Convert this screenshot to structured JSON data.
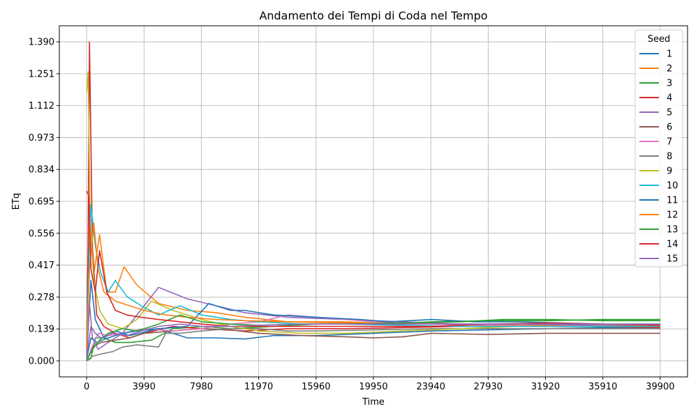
{
  "chart_data": {
    "type": "line",
    "title": "Andamento dei Tempi di Coda nel Tempo",
    "xlabel": "Time",
    "ylabel": "ETq",
    "xlim": [
      -1900,
      41800
    ],
    "ylim": [
      -0.07,
      1.46
    ],
    "xticks": [
      "0",
      "3990",
      "7980",
      "11970",
      "15960",
      "19950",
      "23940",
      "27930",
      "31920",
      "35910",
      "39900"
    ],
    "yticks": [
      "0.000",
      "0.139",
      "0.278",
      "0.417",
      "0.556",
      "0.695",
      "0.834",
      "0.973",
      "1.112",
      "1.251",
      "1.390"
    ],
    "grid": true,
    "legend": {
      "title": "Seed",
      "position": "top-right"
    },
    "series": [
      {
        "name": "1",
        "color": "#1f77b4",
        "points": [
          [
            0,
            0.02
          ],
          [
            300,
            0.35
          ],
          [
            600,
            0.18
          ],
          [
            1200,
            0.1
          ],
          [
            2000,
            0.13
          ],
          [
            3000,
            0.11
          ],
          [
            5000,
            0.14
          ],
          [
            7000,
            0.1
          ],
          [
            9000,
            0.1
          ],
          [
            11000,
            0.095
          ],
          [
            13000,
            0.11
          ],
          [
            16000,
            0.11
          ],
          [
            20000,
            0.12
          ],
          [
            24000,
            0.13
          ],
          [
            28000,
            0.135
          ],
          [
            32000,
            0.14
          ],
          [
            36000,
            0.145
          ],
          [
            39900,
            0.145
          ]
        ]
      },
      {
        "name": "2",
        "color": "#ff7f0e",
        "points": [
          [
            0,
            0.1
          ],
          [
            200,
            0.6
          ],
          [
            500,
            0.38
          ],
          [
            900,
            0.55
          ],
          [
            1400,
            0.3
          ],
          [
            2000,
            0.3
          ],
          [
            2600,
            0.41
          ],
          [
            3500,
            0.33
          ],
          [
            5000,
            0.25
          ],
          [
            7000,
            0.22
          ],
          [
            9000,
            0.21
          ],
          [
            11000,
            0.19
          ],
          [
            14000,
            0.17
          ],
          [
            18000,
            0.17
          ],
          [
            22000,
            0.16
          ],
          [
            26000,
            0.16
          ],
          [
            30000,
            0.155
          ],
          [
            35000,
            0.155
          ],
          [
            39900,
            0.15
          ]
        ]
      },
      {
        "name": "3",
        "color": "#2ca02c",
        "points": [
          [
            0,
            0.0
          ],
          [
            300,
            0.01
          ],
          [
            600,
            0.1
          ],
          [
            1200,
            0.1
          ],
          [
            2000,
            0.08
          ],
          [
            3000,
            0.08
          ],
          [
            4500,
            0.09
          ],
          [
            6000,
            0.14
          ],
          [
            8000,
            0.15
          ],
          [
            10000,
            0.14
          ],
          [
            13000,
            0.15
          ],
          [
            16000,
            0.16
          ],
          [
            20000,
            0.16
          ],
          [
            24000,
            0.17
          ],
          [
            28000,
            0.175
          ],
          [
            32000,
            0.175
          ],
          [
            36000,
            0.18
          ],
          [
            39900,
            0.18
          ]
        ]
      },
      {
        "name": "4",
        "color": "#d62728",
        "points": [
          [
            0,
            0.05
          ],
          [
            100,
            0.5
          ],
          [
            200,
            1.39
          ],
          [
            400,
            0.5
          ],
          [
            700,
            0.2
          ],
          [
            1200,
            0.15
          ],
          [
            2000,
            0.12
          ],
          [
            3000,
            0.1
          ],
          [
            4000,
            0.12
          ],
          [
            6000,
            0.15
          ],
          [
            8000,
            0.14
          ],
          [
            11000,
            0.13
          ],
          [
            14000,
            0.14
          ],
          [
            18000,
            0.14
          ],
          [
            22000,
            0.145
          ],
          [
            26000,
            0.15
          ],
          [
            30000,
            0.15
          ],
          [
            35000,
            0.15
          ],
          [
            39900,
            0.145
          ]
        ]
      },
      {
        "name": "5",
        "color": "#9467bd",
        "points": [
          [
            0,
            0.05
          ],
          [
            200,
            0.25
          ],
          [
            400,
            0.1
          ],
          [
            800,
            0.05
          ],
          [
            1500,
            0.08
          ],
          [
            2500,
            0.12
          ],
          [
            3500,
            0.2
          ],
          [
            5000,
            0.32
          ],
          [
            7000,
            0.27
          ],
          [
            9000,
            0.24
          ],
          [
            11000,
            0.21
          ],
          [
            14000,
            0.19
          ],
          [
            18000,
            0.18
          ],
          [
            22000,
            0.17
          ],
          [
            26000,
            0.16
          ],
          [
            30000,
            0.16
          ],
          [
            35000,
            0.155
          ],
          [
            39900,
            0.15
          ]
        ]
      },
      {
        "name": "6",
        "color": "#8c564b",
        "points": [
          [
            0,
            0.0
          ],
          [
            400,
            0.06
          ],
          [
            1000,
            0.08
          ],
          [
            2000,
            0.09
          ],
          [
            3000,
            0.1
          ],
          [
            4000,
            0.12
          ],
          [
            6000,
            0.13
          ],
          [
            8000,
            0.14
          ],
          [
            10000,
            0.135
          ],
          [
            12000,
            0.12
          ],
          [
            15000,
            0.11
          ],
          [
            18000,
            0.105
          ],
          [
            20000,
            0.1
          ],
          [
            22000,
            0.105
          ],
          [
            24000,
            0.12
          ],
          [
            28000,
            0.115
          ],
          [
            32000,
            0.12
          ],
          [
            36000,
            0.12
          ],
          [
            39900,
            0.12
          ]
        ]
      },
      {
        "name": "7",
        "color": "#e377c2",
        "points": [
          [
            0,
            0.0
          ],
          [
            300,
            0.05
          ],
          [
            800,
            0.12
          ],
          [
            1500,
            0.11
          ],
          [
            2500,
            0.12
          ],
          [
            4000,
            0.14
          ],
          [
            6000,
            0.13
          ],
          [
            8000,
            0.14
          ],
          [
            10000,
            0.16
          ],
          [
            12000,
            0.17
          ],
          [
            14000,
            0.2
          ],
          [
            16000,
            0.19
          ],
          [
            18000,
            0.18
          ],
          [
            20000,
            0.17
          ],
          [
            24000,
            0.16
          ],
          [
            28000,
            0.155
          ],
          [
            32000,
            0.15
          ],
          [
            36000,
            0.15
          ],
          [
            39900,
            0.15
          ]
        ]
      },
      {
        "name": "8",
        "color": "#7f7f7f",
        "points": [
          [
            0,
            0.0
          ],
          [
            400,
            0.02
          ],
          [
            1000,
            0.03
          ],
          [
            1800,
            0.04
          ],
          [
            2500,
            0.06
          ],
          [
            3500,
            0.07
          ],
          [
            5000,
            0.06
          ],
          [
            5500,
            0.12
          ],
          [
            6500,
            0.12
          ],
          [
            8000,
            0.13
          ],
          [
            10000,
            0.14
          ],
          [
            12000,
            0.14
          ],
          [
            14000,
            0.13
          ],
          [
            16000,
            0.13
          ],
          [
            20000,
            0.135
          ],
          [
            24000,
            0.14
          ],
          [
            28000,
            0.14
          ],
          [
            32000,
            0.14
          ],
          [
            36000,
            0.14
          ],
          [
            39900,
            0.14
          ]
        ]
      },
      {
        "name": "9",
        "color": "#bcbd22",
        "points": [
          [
            0,
            1.17
          ],
          [
            100,
            1.26
          ],
          [
            250,
            0.6
          ],
          [
            500,
            0.35
          ],
          [
            900,
            0.22
          ],
          [
            1500,
            0.16
          ],
          [
            2500,
            0.14
          ],
          [
            3500,
            0.18
          ],
          [
            4500,
            0.26
          ],
          [
            6000,
            0.22
          ],
          [
            8000,
            0.18
          ],
          [
            10000,
            0.15
          ],
          [
            12000,
            0.13
          ],
          [
            15000,
            0.12
          ],
          [
            18000,
            0.12
          ],
          [
            22000,
            0.13
          ],
          [
            26000,
            0.14
          ],
          [
            30000,
            0.15
          ],
          [
            35000,
            0.15
          ],
          [
            39900,
            0.15
          ]
        ]
      },
      {
        "name": "10",
        "color": "#17becf",
        "points": [
          [
            0,
            0.1
          ],
          [
            150,
            0.4
          ],
          [
            300,
            0.68
          ],
          [
            600,
            0.5
          ],
          [
            1000,
            0.38
          ],
          [
            1500,
            0.3
          ],
          [
            2000,
            0.35
          ],
          [
            2800,
            0.28
          ],
          [
            3800,
            0.24
          ],
          [
            5000,
            0.2
          ],
          [
            6500,
            0.24
          ],
          [
            8000,
            0.2
          ],
          [
            10000,
            0.18
          ],
          [
            12000,
            0.17
          ],
          [
            15000,
            0.16
          ],
          [
            18000,
            0.16
          ],
          [
            22000,
            0.155
          ],
          [
            26000,
            0.15
          ],
          [
            30000,
            0.15
          ],
          [
            35000,
            0.15
          ],
          [
            39900,
            0.15
          ]
        ]
      },
      {
        "name": "11",
        "color": "#1f77b4",
        "points": [
          [
            0,
            0.01
          ],
          [
            300,
            0.1
          ],
          [
            700,
            0.08
          ],
          [
            1500,
            0.1
          ],
          [
            2500,
            0.12
          ],
          [
            3500,
            0.13
          ],
          [
            5000,
            0.14
          ],
          [
            7000,
            0.15
          ],
          [
            8500,
            0.25
          ],
          [
            10000,
            0.22
          ],
          [
            11000,
            0.22
          ],
          [
            13000,
            0.2
          ],
          [
            16000,
            0.19
          ],
          [
            19000,
            0.18
          ],
          [
            21000,
            0.17
          ],
          [
            24000,
            0.18
          ],
          [
            27000,
            0.17
          ],
          [
            30000,
            0.17
          ],
          [
            33000,
            0.165
          ],
          [
            36000,
            0.16
          ],
          [
            39900,
            0.16
          ]
        ]
      },
      {
        "name": "12",
        "color": "#ff7f0e",
        "points": [
          [
            0,
            0.05
          ],
          [
            200,
            0.4
          ],
          [
            500,
            0.6
          ],
          [
            800,
            0.4
          ],
          [
            1200,
            0.3
          ],
          [
            2000,
            0.26
          ],
          [
            3000,
            0.24
          ],
          [
            4000,
            0.22
          ],
          [
            5500,
            0.2
          ],
          [
            7000,
            0.19
          ],
          [
            9000,
            0.18
          ],
          [
            11000,
            0.175
          ],
          [
            14000,
            0.17
          ],
          [
            18000,
            0.165
          ],
          [
            22000,
            0.16
          ],
          [
            26000,
            0.16
          ],
          [
            30000,
            0.16
          ],
          [
            35000,
            0.16
          ],
          [
            39900,
            0.155
          ]
        ]
      },
      {
        "name": "13",
        "color": "#2ca02c",
        "points": [
          [
            0,
            0.0
          ],
          [
            400,
            0.05
          ],
          [
            900,
            0.09
          ],
          [
            1500,
            0.12
          ],
          [
            2500,
            0.14
          ],
          [
            3500,
            0.13
          ],
          [
            5000,
            0.16
          ],
          [
            6500,
            0.2
          ],
          [
            8000,
            0.17
          ],
          [
            10000,
            0.16
          ],
          [
            12000,
            0.155
          ],
          [
            15000,
            0.16
          ],
          [
            18000,
            0.16
          ],
          [
            22000,
            0.165
          ],
          [
            26000,
            0.17
          ],
          [
            29000,
            0.18
          ],
          [
            32000,
            0.18
          ],
          [
            36000,
            0.175
          ],
          [
            39900,
            0.175
          ]
        ]
      },
      {
        "name": "14",
        "color": "#d62728",
        "points": [
          [
            0,
            0.74
          ],
          [
            150,
            0.72
          ],
          [
            300,
            0.4
          ],
          [
            600,
            0.3
          ],
          [
            900,
            0.48
          ],
          [
            1400,
            0.3
          ],
          [
            2000,
            0.22
          ],
          [
            2800,
            0.2
          ],
          [
            3800,
            0.19
          ],
          [
            5000,
            0.18
          ],
          [
            6500,
            0.17
          ],
          [
            8000,
            0.16
          ],
          [
            10000,
            0.15
          ],
          [
            13000,
            0.15
          ],
          [
            16000,
            0.15
          ],
          [
            20000,
            0.15
          ],
          [
            24000,
            0.15
          ],
          [
            28000,
            0.16
          ],
          [
            32000,
            0.165
          ],
          [
            36000,
            0.16
          ],
          [
            39900,
            0.155
          ]
        ]
      },
      {
        "name": "15",
        "color": "#9467bd",
        "points": [
          [
            0,
            0.02
          ],
          [
            300,
            0.15
          ],
          [
            600,
            0.12
          ],
          [
            1000,
            0.1
          ],
          [
            1800,
            0.12
          ],
          [
            2800,
            0.11
          ],
          [
            3800,
            0.13
          ],
          [
            5000,
            0.15
          ],
          [
            6500,
            0.16
          ],
          [
            8000,
            0.15
          ],
          [
            10000,
            0.15
          ],
          [
            12000,
            0.155
          ],
          [
            15000,
            0.16
          ],
          [
            18000,
            0.16
          ],
          [
            22000,
            0.16
          ],
          [
            26000,
            0.16
          ],
          [
            30000,
            0.16
          ],
          [
            35000,
            0.16
          ],
          [
            39900,
            0.16
          ]
        ]
      }
    ]
  }
}
